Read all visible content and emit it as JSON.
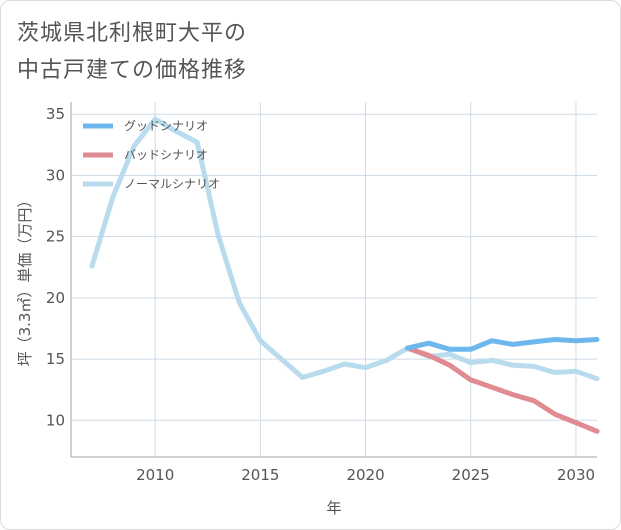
{
  "title_lines": [
    "茨城県北利根町大平の",
    "中古戸建ての価格推移"
  ],
  "chart_data": {
    "type": "line",
    "title": "茨城県北利根町大平の中古戸建ての価格推移",
    "xlabel": "年",
    "ylabel": "坪（3.3㎡）単価（万円）",
    "xlim": [
      2006,
      2031
    ],
    "ylim": [
      7,
      36
    ],
    "xticks": [
      2010,
      2015,
      2020,
      2025,
      2030
    ],
    "yticks": [
      10,
      15,
      20,
      25,
      30,
      35
    ],
    "grid": true,
    "legend_position": "top-left",
    "series": [
      {
        "name": "グッドシナリオ",
        "color": "#6cb8ec",
        "x": [
          2022,
          2023,
          2024,
          2025,
          2026,
          2027,
          2028,
          2029,
          2030,
          2031
        ],
        "y": [
          15.9,
          16.3,
          15.8,
          15.8,
          16.5,
          16.2,
          16.4,
          16.6,
          16.5,
          16.6
        ]
      },
      {
        "name": "バッドシナリオ",
        "color": "#e08a92",
        "x": [
          2022,
          2023,
          2024,
          2025,
          2026,
          2027,
          2028,
          2029,
          2030,
          2031
        ],
        "y": [
          15.9,
          15.3,
          14.5,
          13.3,
          12.7,
          12.1,
          11.6,
          10.5,
          9.8,
          9.1
        ]
      },
      {
        "name": "ノーマルシナリオ",
        "color": "#b8dcee",
        "x": [
          2007,
          2008,
          2009,
          2010,
          2011,
          2012,
          2013,
          2014,
          2015,
          2016,
          2017,
          2018,
          2019,
          2020,
          2021,
          2022,
          2023,
          2024,
          2025,
          2026,
          2027,
          2028,
          2029,
          2030,
          2031
        ],
        "y": [
          22.6,
          28.3,
          32.4,
          34.6,
          33.6,
          32.7,
          25.1,
          19.6,
          16.5,
          15.0,
          13.5,
          14.0,
          14.6,
          14.3,
          14.9,
          15.9,
          15.2,
          15.4,
          14.7,
          14.9,
          14.5,
          14.4,
          13.9,
          14.0,
          13.4
        ]
      }
    ]
  }
}
